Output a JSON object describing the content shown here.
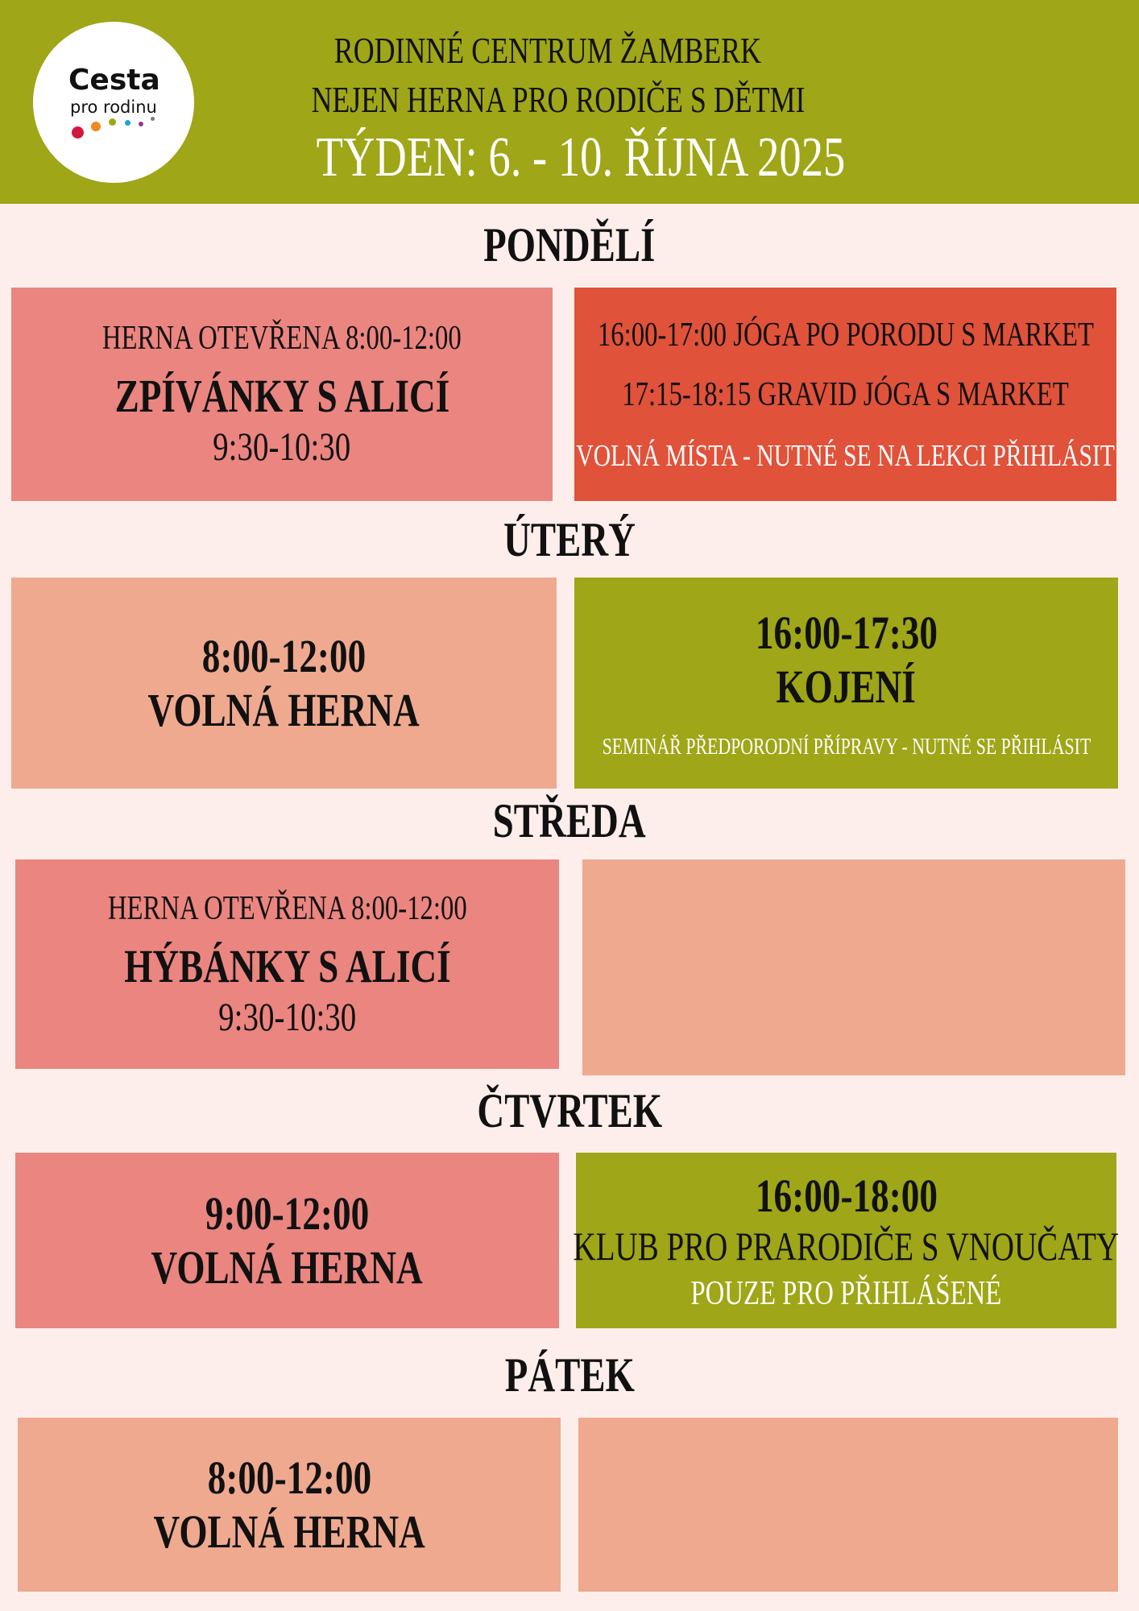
{
  "header": {
    "logo": {
      "line1": "Cesta",
      "line2": "pro rodinu",
      "dot_colors": [
        "#d4173f",
        "#ee8a1f",
        "#9fa617",
        "#1aa3d8",
        "#8e3a97",
        "#7a7a7a"
      ]
    },
    "title": "Rodinné centrum Žamberk",
    "subtitle": "Nejen herna pro rodiče s dětmi",
    "week": "Týden: 6. - 10. října 2025"
  },
  "colors": {
    "header": "#9fa617",
    "background": "#fdeeeb",
    "pink": "#eb8580",
    "salmon": "#efa98f",
    "red": "#e0523a",
    "olive": "#9fa617"
  },
  "days": [
    {
      "name": "Pondělí",
      "left": {
        "line1": "Herna otevřena 8:00-12:00",
        "line2": "Zpívánky s Alicí",
        "line3": "9:30-10:30"
      },
      "right": {
        "line1": "16:00-17:00 jóga po porodu s Market",
        "line2": "17:15-18:15 gravid jóga s Market",
        "line3": "Volná místa - nutné se na lekci přihlásit"
      }
    },
    {
      "name": "Úterý",
      "left": {
        "line1": "8:00-12:00",
        "line2": "Volná herna"
      },
      "right": {
        "line1": "16:00-17:30",
        "line2": "Kojení",
        "line3": "Seminář předporodní přípravy - nutné se přihlásit"
      }
    },
    {
      "name": "Středa",
      "left": {
        "line1": "Herna otevřena 8:00-12:00",
        "line2": "Hýbánky s Alicí",
        "line3": "9:30-10:30"
      },
      "right": {}
    },
    {
      "name": "Čtvrtek",
      "left": {
        "line1": "9:00-12:00",
        "line2": "Volná herna"
      },
      "right": {
        "line1": "16:00-18:00",
        "line2": "Klub pro prarodiče s vnoučaty",
        "line3": "Pouze pro přihlášené"
      }
    },
    {
      "name": "Pátek",
      "left": {
        "line1": "8:00-12:00",
        "line2": "Volná herna"
      },
      "right": {}
    }
  ]
}
